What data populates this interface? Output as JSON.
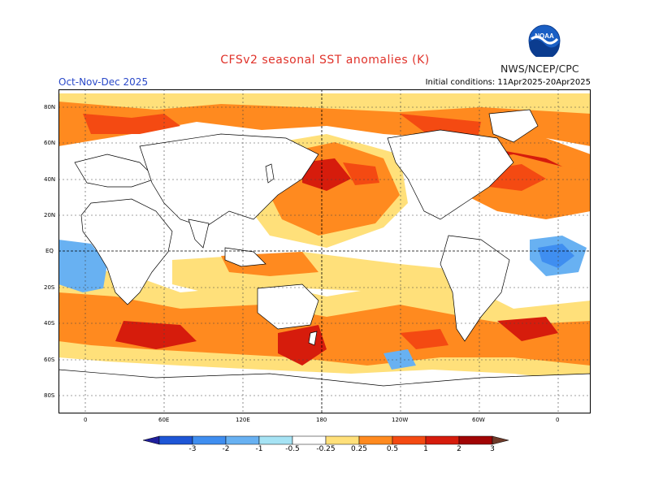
{
  "header": {
    "title": "CFSv2 seasonal SST anomalies (K)",
    "season": "Oct-Nov-Dec 2025",
    "initial_conditions": "Initial conditions: 11Apr2025-20Apr2025",
    "agency": "NWS/NCEP/CPC",
    "logo_text": "NOAA"
  },
  "map": {
    "lat_labels": [
      "80N",
      "60N",
      "40N",
      "20N",
      "EQ",
      "20S",
      "40S",
      "60S",
      "80S"
    ],
    "lon_labels": [
      "0",
      "60E",
      "120E",
      "180",
      "120W",
      "60W",
      "0"
    ]
  },
  "colorbar": {
    "labels": [
      "-3",
      "-2",
      "-1",
      "-0.5",
      "-0.25",
      "0.25",
      "0.5",
      "1",
      "2",
      "3"
    ],
    "colors": [
      "#1f1f9c",
      "#1e56d6",
      "#3f8ef0",
      "#68b1f2",
      "#a6e3f4",
      "#ffffff",
      "#ffe07a",
      "#ff8a1f",
      "#f44a12",
      "#d61c0c",
      "#a10505",
      "#6e3b2a"
    ]
  }
}
